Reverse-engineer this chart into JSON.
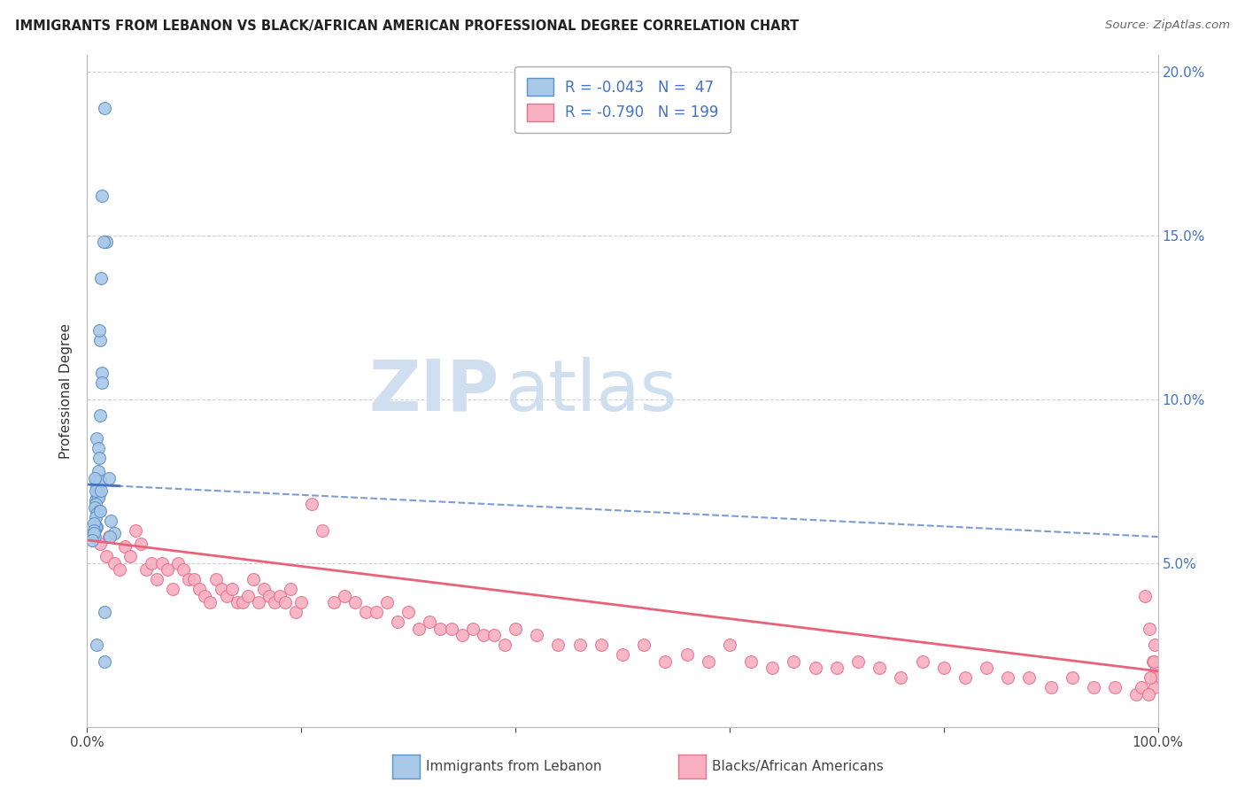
{
  "title": "IMMIGRANTS FROM LEBANON VS BLACK/AFRICAN AMERICAN PROFESSIONAL DEGREE CORRELATION CHART",
  "source": "Source: ZipAtlas.com",
  "ylabel": "Professional Degree",
  "blue_line_color": "#4472c4",
  "pink_line_color": "#e8637a",
  "blue_scatter_face": "#a8c8e8",
  "blue_scatter_edge": "#6090c8",
  "pink_scatter_face": "#f8b0c0",
  "pink_scatter_edge": "#e87090",
  "background_color": "#ffffff",
  "title_color": "#222222",
  "watermark_color": "#d0dff0",
  "grid_color": "#cccccc",
  "right_axis_color": "#4472c4",
  "blue_points_x": [
    0.016,
    0.014,
    0.018,
    0.015,
    0.013,
    0.012,
    0.011,
    0.014,
    0.014,
    0.012,
    0.009,
    0.01,
    0.011,
    0.01,
    0.009,
    0.01,
    0.009,
    0.01,
    0.011,
    0.009,
    0.008,
    0.012,
    0.01,
    0.008,
    0.007,
    0.011,
    0.009,
    0.008,
    0.007,
    0.009,
    0.008,
    0.007,
    0.006,
    0.006,
    0.006,
    0.005,
    0.007,
    0.008,
    0.012,
    0.022,
    0.025,
    0.021,
    0.02,
    0.013,
    0.016,
    0.016,
    0.009
  ],
  "blue_points_y": [
    0.189,
    0.162,
    0.148,
    0.148,
    0.137,
    0.118,
    0.121,
    0.108,
    0.105,
    0.095,
    0.088,
    0.085,
    0.082,
    0.078,
    0.075,
    0.074,
    0.073,
    0.072,
    0.071,
    0.07,
    0.069,
    0.075,
    0.07,
    0.068,
    0.067,
    0.066,
    0.065,
    0.064,
    0.06,
    0.061,
    0.061,
    0.058,
    0.062,
    0.06,
    0.059,
    0.057,
    0.076,
    0.072,
    0.066,
    0.063,
    0.059,
    0.058,
    0.076,
    0.072,
    0.035,
    0.02,
    0.025
  ],
  "pink_points_x": [
    0.012,
    0.018,
    0.02,
    0.025,
    0.03,
    0.035,
    0.04,
    0.045,
    0.05,
    0.055,
    0.06,
    0.065,
    0.07,
    0.075,
    0.08,
    0.085,
    0.09,
    0.095,
    0.1,
    0.105,
    0.11,
    0.115,
    0.12,
    0.125,
    0.13,
    0.135,
    0.14,
    0.145,
    0.15,
    0.155,
    0.16,
    0.165,
    0.17,
    0.175,
    0.18,
    0.185,
    0.19,
    0.195,
    0.2,
    0.21,
    0.22,
    0.23,
    0.24,
    0.25,
    0.26,
    0.27,
    0.28,
    0.29,
    0.3,
    0.31,
    0.32,
    0.33,
    0.34,
    0.35,
    0.36,
    0.37,
    0.38,
    0.39,
    0.4,
    0.42,
    0.44,
    0.46,
    0.48,
    0.5,
    0.52,
    0.54,
    0.56,
    0.58,
    0.6,
    0.62,
    0.64,
    0.66,
    0.68,
    0.7,
    0.72,
    0.74,
    0.76,
    0.78,
    0.8,
    0.82,
    0.84,
    0.86,
    0.88,
    0.9,
    0.92,
    0.94,
    0.96,
    0.98,
    0.985,
    0.988,
    0.992,
    0.995,
    0.997,
    0.999,
    0.998,
    0.997,
    0.996,
    0.993,
    0.991
  ],
  "pink_points_y": [
    0.056,
    0.052,
    0.058,
    0.05,
    0.048,
    0.055,
    0.052,
    0.06,
    0.056,
    0.048,
    0.05,
    0.045,
    0.05,
    0.048,
    0.042,
    0.05,
    0.048,
    0.045,
    0.045,
    0.042,
    0.04,
    0.038,
    0.045,
    0.042,
    0.04,
    0.042,
    0.038,
    0.038,
    0.04,
    0.045,
    0.038,
    0.042,
    0.04,
    0.038,
    0.04,
    0.038,
    0.042,
    0.035,
    0.038,
    0.068,
    0.06,
    0.038,
    0.04,
    0.038,
    0.035,
    0.035,
    0.038,
    0.032,
    0.035,
    0.03,
    0.032,
    0.03,
    0.03,
    0.028,
    0.03,
    0.028,
    0.028,
    0.025,
    0.03,
    0.028,
    0.025,
    0.025,
    0.025,
    0.022,
    0.025,
    0.02,
    0.022,
    0.02,
    0.025,
    0.02,
    0.018,
    0.02,
    0.018,
    0.018,
    0.02,
    0.018,
    0.015,
    0.02,
    0.018,
    0.015,
    0.018,
    0.015,
    0.015,
    0.012,
    0.015,
    0.012,
    0.012,
    0.01,
    0.012,
    0.04,
    0.03,
    0.02,
    0.025,
    0.018,
    0.015,
    0.012,
    0.02,
    0.015,
    0.01
  ],
  "xlim": [
    0.0,
    1.0
  ],
  "ylim": [
    0.0,
    0.205
  ],
  "y_ticks": [
    0.0,
    0.05,
    0.1,
    0.15,
    0.2
  ],
  "x_ticks": [
    0.0,
    0.2,
    0.4,
    0.6,
    0.8,
    1.0
  ]
}
